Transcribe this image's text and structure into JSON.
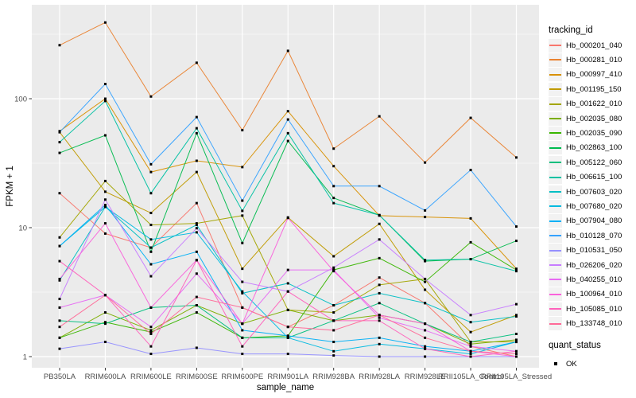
{
  "chart_data": {
    "type": "line",
    "title": "",
    "xlabel": "sample_name",
    "ylabel": "FPKM + 1",
    "y_scale": "log10",
    "ylim": [
      0.93,
      550
    ],
    "grid": true,
    "panel_bg": "#EBEBEB",
    "grid_color": "#FFFFFF",
    "marker": "black-square",
    "y_ticks": [
      1,
      10,
      100
    ],
    "y_minor_gridlines": [
      3.162,
      31.62,
      316.23
    ],
    "x_categories": [
      "PB350LA",
      "RRIM600LA",
      "RRIM600LE",
      "RRIM600SE",
      "RRIM600PE",
      "RRIM901LA",
      "RRIM928BA",
      "RRIM928LA",
      "RRIM928LE",
      "RRII105LA_Control",
      "RRII105LA_Stressed"
    ],
    "legend_title": "tracking_id",
    "legend2_title": "quant_status",
    "legend2_items": [
      "OK"
    ],
    "series": [
      {
        "name": "Hb_000201_040",
        "color": "#F8766D",
        "values": [
          18.5,
          9,
          7,
          15.5,
          2.4,
          1.7,
          2.5,
          4.1,
          2.6,
          1.2,
          1.0
        ]
      },
      {
        "name": "Hb_000281_010",
        "color": "#EA8331",
        "values": [
          260,
          390,
          104,
          190,
          57,
          235,
          41,
          73,
          32,
          71,
          35
        ]
      },
      {
        "name": "Hb_000997_410",
        "color": "#D89000",
        "values": [
          56,
          100,
          27,
          33,
          29.5,
          80,
          30,
          12.4,
          12.1,
          11.8,
          4.8
        ]
      },
      {
        "name": "Hb_001195_150",
        "color": "#C09B00",
        "values": [
          55,
          19,
          13,
          27,
          4.8,
          12,
          6,
          10.7,
          3.3,
          1.55,
          2.1
        ]
      },
      {
        "name": "Hb_001622_010",
        "color": "#A3A500",
        "values": [
          8.4,
          23,
          10.5,
          10.8,
          12.4,
          2.3,
          2.2,
          3.6,
          4.0,
          1.3,
          1.3
        ]
      },
      {
        "name": "Hb_002035_080",
        "color": "#7CAE00",
        "values": [
          1.4,
          2.2,
          1.6,
          2.5,
          1.8,
          2.3,
          1.9,
          2.1,
          1.8,
          1.25,
          1.35
        ]
      },
      {
        "name": "Hb_002035_090",
        "color": "#39B600",
        "values": [
          1.4,
          1.85,
          1.55,
          2.2,
          1.4,
          1.45,
          4.7,
          5.8,
          3.8,
          7.7,
          4.7
        ]
      },
      {
        "name": "Hb_002863_100",
        "color": "#00BB4E",
        "values": [
          38,
          52,
          6.5,
          54,
          7.6,
          47,
          17,
          12.5,
          5.5,
          5.7,
          7.9
        ]
      },
      {
        "name": "Hb_005122_060",
        "color": "#00BF7D",
        "values": [
          1.9,
          1.8,
          2.4,
          2.5,
          1.4,
          1.4,
          1.9,
          2.6,
          1.8,
          1.3,
          1.5
        ]
      },
      {
        "name": "Hb_006615_100",
        "color": "#00C1A3",
        "values": [
          46,
          96,
          18.5,
          59,
          13.5,
          54,
          15.5,
          12.5,
          5.6,
          5.7,
          4.6
        ]
      },
      {
        "name": "Hb_007603_020",
        "color": "#00BFC4",
        "values": [
          3.9,
          14.5,
          7.0,
          10.5,
          3.1,
          3.7,
          2.5,
          3.1,
          2.6,
          1.85,
          2.05
        ]
      },
      {
        "name": "Hb_007680_020",
        "color": "#00BAE0",
        "values": [
          7.2,
          14.5,
          8.1,
          9.2,
          3.2,
          1.4,
          1.1,
          1.25,
          1.15,
          1.05,
          1.3
        ]
      },
      {
        "name": "Hb_007904_080",
        "color": "#00B0F6",
        "values": [
          7.2,
          15,
          5.2,
          6.5,
          1.6,
          1.45,
          1.3,
          1.4,
          1.2,
          1.1,
          1.3
        ]
      },
      {
        "name": "Hb_010128_070",
        "color": "#35A2FF",
        "values": [
          55,
          130,
          31,
          72,
          16.2,
          69,
          21,
          21,
          13.6,
          28,
          10.2
        ]
      },
      {
        "name": "Hb_010531_050",
        "color": "#9590FF",
        "values": [
          1.15,
          1.3,
          1.05,
          1.17,
          1.05,
          1.05,
          1.02,
          1.0,
          1.0,
          1.0,
          1.0
        ]
      },
      {
        "name": "Hb_026206_020",
        "color": "#C77CFF",
        "values": [
          2.8,
          16.5,
          4.2,
          9.9,
          3.8,
          3.2,
          4.9,
          8.1,
          4.0,
          2.1,
          2.55
        ]
      },
      {
        "name": "Hb_040255_010",
        "color": "#E76BF3",
        "values": [
          2.4,
          3.0,
          1.7,
          4.4,
          1.8,
          4.7,
          4.7,
          2.0,
          1.6,
          1.2,
          1.1
        ]
      },
      {
        "name": "Hb_100964_010",
        "color": "#FA62DB",
        "values": [
          4.0,
          10.8,
          2.4,
          5.6,
          1.8,
          11.9,
          4.6,
          2.1,
          1.8,
          1.1,
          1.0
        ]
      },
      {
        "name": "Hb_105085_010",
        "color": "#FF62BC",
        "values": [
          5.5,
          3.0,
          1.2,
          5.6,
          1.2,
          3.2,
          1.9,
          1.9,
          1.15,
          1.0,
          1.1
        ]
      },
      {
        "name": "Hb_133748_010",
        "color": "#FF6A98",
        "values": [
          1.7,
          3.0,
          1.5,
          2.9,
          2.4,
          1.7,
          1.6,
          2.1,
          1.4,
          1.1,
          1.05
        ]
      }
    ]
  }
}
